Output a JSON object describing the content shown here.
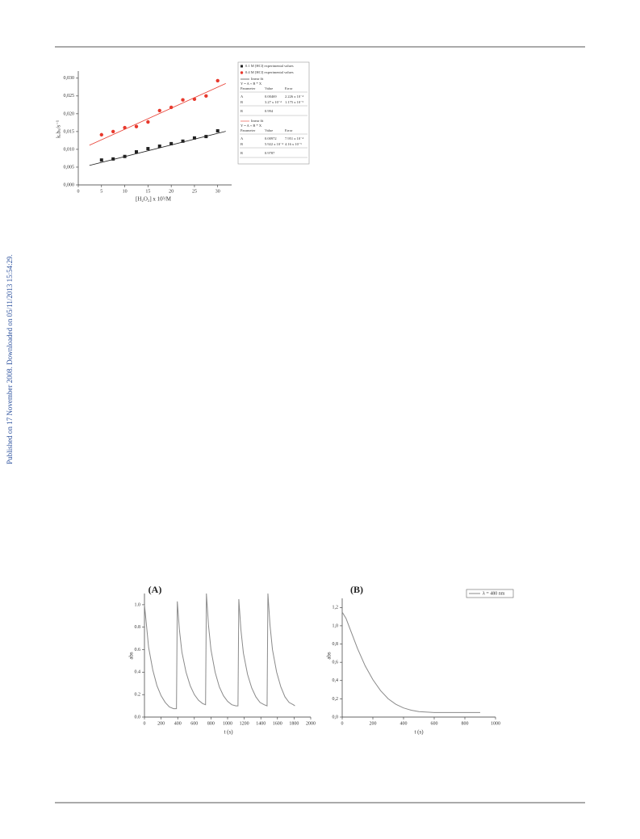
{
  "sidebar": {
    "text": "Published on 17 November 2008. Downloaded on 05/11/2013 15:54:29."
  },
  "chart_data": [
    {
      "type": "scatter",
      "x_label": "[H₂O₂] x 10³/M",
      "y_label": "kₒbₛ/s⁻¹",
      "xlim": [
        0,
        33
      ],
      "ylim": [
        0,
        0.032
      ],
      "xticks": [
        0,
        5,
        10,
        15,
        20,
        25,
        30
      ],
      "yticks": [
        {
          "value": 0,
          "label": "0,000"
        },
        {
          "value": 0.005,
          "label": "0,005"
        },
        {
          "value": 0.01,
          "label": "0,010"
        },
        {
          "value": 0.015,
          "label": "0,015"
        },
        {
          "value": 0.02,
          "label": "0,020"
        },
        {
          "value": 0.025,
          "label": "0,025"
        },
        {
          "value": 0.03,
          "label": "0,030"
        }
      ],
      "grid": false,
      "series": [
        {
          "name": "0.1 M [HCl] experimental values",
          "color": "#222222",
          "marker": "square",
          "x": [
            5,
            7.5,
            10,
            12.5,
            15,
            17.5,
            20,
            22.5,
            25,
            27.5,
            30
          ],
          "values": [
            0.007,
            0.0073,
            0.008,
            0.0093,
            0.0102,
            0.0109,
            0.0116,
            0.0123,
            0.0132,
            0.0136,
            0.0152
          ]
        },
        {
          "name": "0.4 M [HCl] experimental values",
          "color": "#e8392d",
          "marker": "circle",
          "x": [
            5,
            7.5,
            10,
            12.5,
            15,
            17.5,
            20,
            22.5,
            25,
            27.5,
            30
          ],
          "values": [
            0.0141,
            0.015,
            0.0161,
            0.0164,
            0.0177,
            0.0209,
            0.0218,
            0.0239,
            0.0241,
            0.025,
            0.0293
          ]
        }
      ],
      "fits": [
        {
          "name": "linear fit",
          "color": "#222222",
          "equation": "Y = A + B * X",
          "columns": [
            "Parameter",
            "Value",
            "Error"
          ],
          "params": [
            {
              "name": "A",
              "value": 0.00469,
              "error": {
                "value": 0.0002226,
                "label": "2.226 x 10⁻⁴"
              }
            },
            {
              "name": "B",
              "value": {
                "value": 0.000327,
                "label": "3.27 x 10⁻⁴"
              },
              "error": {
                "value": 1.175e-05,
                "label": "1.175 x 10⁻⁵"
              }
            }
          ],
          "r_name": "R",
          "r": 0.994
        },
        {
          "name": "linear fit",
          "color": "#e8392d",
          "equation": "Y = A + B * X",
          "columns": [
            "Parameter",
            "Value",
            "Error"
          ],
          "params": [
            {
              "name": "A",
              "value": 0.00972,
              "error": {
                "value": 0.0007951,
                "label": "7.951 x 10⁻⁴"
              }
            },
            {
              "name": "B",
              "value": {
                "value": 0.0005922,
                "label": "5.922 x 10⁻⁴"
              },
              "error": {
                "value": 4.16e-05,
                "label": "4.16 x 10⁻⁵"
              }
            }
          ],
          "r_name": "R",
          "r": 0.9787
        }
      ]
    },
    {
      "type": "line",
      "title": "(A)",
      "x_label": "t (s)",
      "y_label": "abs",
      "xlim": [
        0,
        2000
      ],
      "ylim": [
        0,
        1.1
      ],
      "xticks": [
        0,
        200,
        400,
        600,
        800,
        1000,
        1200,
        1400,
        1600,
        1800,
        2000
      ],
      "yticks": [
        {
          "value": 0,
          "label": "0.0"
        },
        {
          "value": 0.2,
          "label": "0.2"
        },
        {
          "value": 0.4,
          "label": "0.4"
        },
        {
          "value": 0.6,
          "label": "0.6"
        },
        {
          "value": 0.8,
          "label": "0.8"
        },
        {
          "value": 1,
          "label": "1.0"
        }
      ],
      "grid": false,
      "series": [
        {
          "name": "abs",
          "color": "#8a8a8a",
          "x": [
            0,
            20,
            50,
            100,
            150,
            200,
            250,
            300,
            350,
            385,
            395,
            420,
            450,
            500,
            550,
            600,
            650,
            700,
            735,
            745,
            770,
            800,
            850,
            900,
            950,
            1000,
            1050,
            1100,
            1125,
            1135,
            1160,
            1190,
            1240,
            1290,
            1340,
            1390,
            1440,
            1475,
            1485,
            1510,
            1540,
            1590,
            1640,
            1690,
            1740,
            1790,
            1810
          ],
          "values": [
            1.0,
            0.85,
            0.62,
            0.42,
            0.28,
            0.19,
            0.13,
            0.09,
            0.075,
            0.075,
            1.03,
            0.78,
            0.58,
            0.4,
            0.28,
            0.2,
            0.15,
            0.12,
            0.11,
            1.1,
            0.82,
            0.6,
            0.4,
            0.27,
            0.19,
            0.14,
            0.11,
            0.1,
            0.1,
            1.05,
            0.78,
            0.57,
            0.38,
            0.26,
            0.18,
            0.13,
            0.11,
            0.1,
            1.1,
            0.82,
            0.6,
            0.4,
            0.27,
            0.18,
            0.13,
            0.11,
            0.1
          ]
        }
      ]
    },
    {
      "type": "line",
      "title": "(B)",
      "x_label": "t (s)",
      "y_label": "abs",
      "xlim": [
        0,
        1000
      ],
      "ylim": [
        0,
        1.3
      ],
      "xticks": [
        0,
        200,
        400,
        600,
        800,
        1000
      ],
      "yticks": [
        {
          "value": 0,
          "label": "0,0"
        },
        {
          "value": 0.2,
          "label": "0,2"
        },
        {
          "value": 0.4,
          "label": "0,4"
        },
        {
          "value": 0.6,
          "label": "0,6"
        },
        {
          "value": 0.8,
          "label": "0,8"
        },
        {
          "value": 1,
          "label": "1,0"
        },
        {
          "value": 1.2,
          "label": "1,2"
        }
      ],
      "grid": false,
      "legend": "upper-right",
      "series": [
        {
          "name": "λ = 480 nm",
          "color": "#8a8a8a",
          "x": [
            0,
            25,
            50,
            100,
            150,
            200,
            250,
            300,
            350,
            400,
            450,
            500,
            600,
            700,
            800,
            900
          ],
          "values": [
            1.15,
            1.08,
            0.97,
            0.75,
            0.56,
            0.41,
            0.29,
            0.2,
            0.14,
            0.1,
            0.075,
            0.06,
            0.05,
            0.05,
            0.05,
            0.05
          ]
        }
      ]
    }
  ]
}
